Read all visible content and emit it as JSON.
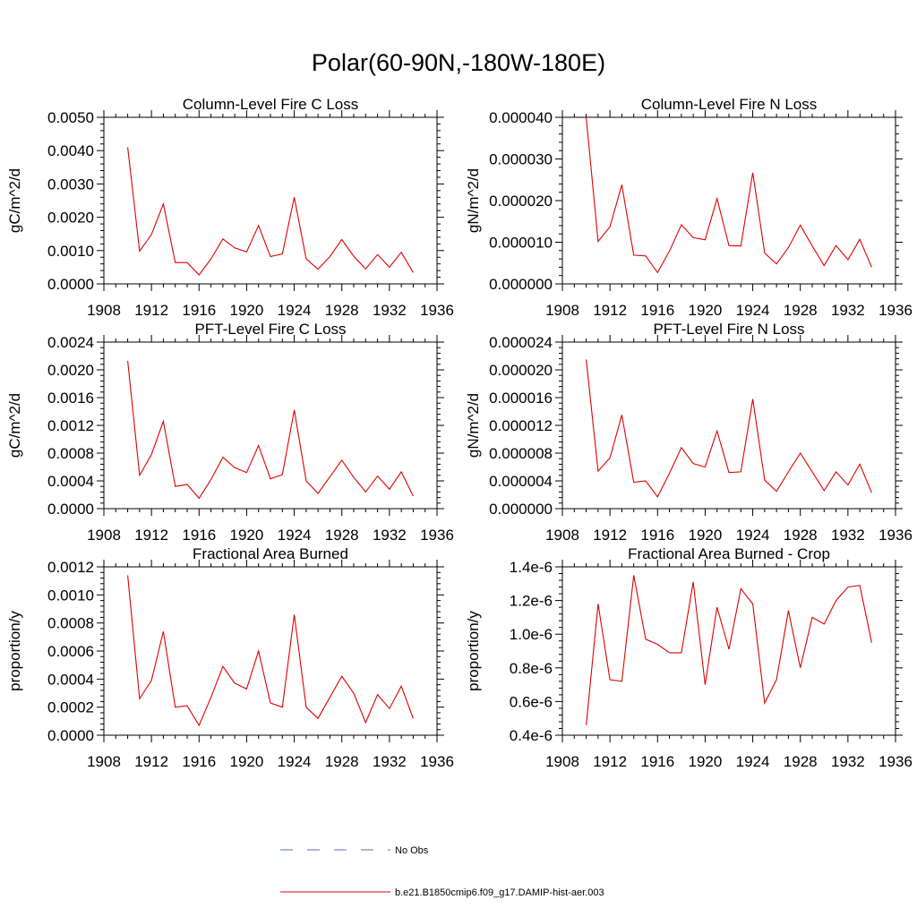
{
  "figure_title": "Polar(60-90N,-180W-180E)",
  "legend": {
    "entries": [
      {
        "label": "No Obs",
        "style": "dashed",
        "color": "#5a6ec8"
      },
      {
        "label": "b.e21.B1850cmip6.f09_g17.DAMIP-hist-aer.003",
        "style": "solid",
        "color": "#e00000"
      }
    ]
  },
  "chart_data": [
    {
      "type": "line",
      "title": "Column-Level Fire C Loss",
      "ylabel": "gC/m^2/d",
      "xlim": [
        1908,
        1936
      ],
      "xticks": [
        "1908",
        "1912",
        "1916",
        "1920",
        "1924",
        "1928",
        "1932",
        "1936"
      ],
      "ylim": [
        0,
        0.005
      ],
      "yticks": [
        "0.0000",
        "0.0010",
        "0.0020",
        "0.0030",
        "0.0040",
        "0.0050"
      ],
      "color": "#e00000",
      "x": [
        1910,
        1911,
        1912,
        1913,
        1914,
        1915,
        1916,
        1917,
        1918,
        1919,
        1920,
        1921,
        1922,
        1923,
        1924,
        1925,
        1926,
        1927,
        1928,
        1929,
        1930,
        1931,
        1932,
        1933,
        1934
      ],
      "values": [
        0.0041,
        0.00098,
        0.00148,
        0.0024,
        0.00064,
        0.00064,
        0.00027,
        0.00075,
        0.00135,
        0.00108,
        0.00096,
        0.00175,
        0.00082,
        0.0009,
        0.0026,
        0.00075,
        0.00044,
        0.00082,
        0.00133,
        0.00083,
        0.00045,
        0.00088,
        0.0005,
        0.00095,
        0.00034
      ]
    },
    {
      "type": "line",
      "title": "Column-Level Fire N Loss",
      "ylabel": "gN/m^2/d",
      "xlim": [
        1908,
        1936
      ],
      "xticks": [
        "1908",
        "1912",
        "1916",
        "1920",
        "1924",
        "1928",
        "1932",
        "1936"
      ],
      "ylim": [
        0,
        4e-05
      ],
      "yticks": [
        "0.000000",
        "0.000010",
        "0.000020",
        "0.000030",
        "0.000040"
      ],
      "color": "#e00000",
      "x": [
        1910,
        1911,
        1912,
        1913,
        1914,
        1915,
        1916,
        1917,
        1918,
        1919,
        1920,
        1921,
        1922,
        1923,
        1924,
        1925,
        1926,
        1927,
        1928,
        1929,
        1930,
        1931,
        1932,
        1933,
        1934
      ],
      "values": [
        4e-05,
        1.02e-05,
        1.37e-05,
        2.38e-05,
        6.9e-06,
        6.7e-06,
        2.7e-06,
        7.9e-06,
        1.42e-05,
        1.11e-05,
        1.06e-05,
        2.05e-05,
        9.2e-06,
        9.1e-06,
        2.67e-05,
        7.4e-06,
        4.8e-06,
        8.7e-06,
        1.41e-05,
        9.1e-06,
        4.4e-06,
        9.2e-06,
        5.8e-06,
        1.07e-05,
        4e-06
      ]
    },
    {
      "type": "line",
      "title": "PFT-Level Fire C Loss",
      "ylabel": "gC/m^2/d",
      "xlim": [
        1908,
        1936
      ],
      "xticks": [
        "1908",
        "1912",
        "1916",
        "1920",
        "1924",
        "1928",
        "1932",
        "1936"
      ],
      "ylim": [
        0,
        0.0024
      ],
      "yticks": [
        "0.0000",
        "0.0004",
        "0.0008",
        "0.0012",
        "0.0016",
        "0.0020",
        "0.0024"
      ],
      "color": "#e00000",
      "x": [
        1910,
        1911,
        1912,
        1913,
        1914,
        1915,
        1916,
        1917,
        1918,
        1919,
        1920,
        1921,
        1922,
        1923,
        1924,
        1925,
        1926,
        1927,
        1928,
        1929,
        1930,
        1931,
        1932,
        1933,
        1934
      ],
      "values": [
        0.00213,
        0.00048,
        0.00078,
        0.00126,
        0.00032,
        0.00035,
        0.00015,
        0.00042,
        0.00074,
        0.00059,
        0.00052,
        0.00091,
        0.00043,
        0.00049,
        0.00142,
        0.0004,
        0.00022,
        0.00046,
        0.0007,
        0.00045,
        0.00024,
        0.00047,
        0.00028,
        0.00053,
        0.00018
      ]
    },
    {
      "type": "line",
      "title": "PFT-Level Fire N Loss",
      "ylabel": "gN/m^2/d",
      "xlim": [
        1908,
        1936
      ],
      "xticks": [
        "1908",
        "1912",
        "1916",
        "1920",
        "1924",
        "1928",
        "1932",
        "1936"
      ],
      "ylim": [
        0,
        2.4e-05
      ],
      "yticks": [
        "0.000000",
        "0.000004",
        "0.000008",
        "0.000012",
        "0.000016",
        "0.000020",
        "0.000024"
      ],
      "color": "#e00000",
      "x": [
        1910,
        1911,
        1912,
        1913,
        1914,
        1915,
        1916,
        1917,
        1918,
        1919,
        1920,
        1921,
        1922,
        1923,
        1924,
        1925,
        1926,
        1927,
        1928,
        1929,
        1930,
        1931,
        1932,
        1933,
        1934
      ],
      "values": [
        2.15e-05,
        5.4e-06,
        7.3e-06,
        1.35e-05,
        3.8e-06,
        4e-06,
        1.7e-06,
        5.1e-06,
        8.8e-06,
        6.5e-06,
        6e-06,
        1.12e-05,
        5.2e-06,
        5.3e-06,
        1.58e-05,
        4.1e-06,
        2.5e-06,
        5.3e-06,
        8e-06,
        5.3e-06,
        2.6e-06,
        5.3e-06,
        3.4e-06,
        6.4e-06,
        2.3e-06
      ]
    },
    {
      "type": "line",
      "title": "Fractional Area Burned",
      "ylabel": "proportion/y",
      "xlim": [
        1908,
        1936
      ],
      "xticks": [
        "1908",
        "1912",
        "1916",
        "1920",
        "1924",
        "1928",
        "1932",
        "1936"
      ],
      "ylim": [
        0,
        0.0012
      ],
      "yticks": [
        "0.0000",
        "0.0002",
        "0.0004",
        "0.0006",
        "0.0008",
        "0.0010",
        "0.0012"
      ],
      "color": "#e00000",
      "x": [
        1910,
        1911,
        1912,
        1913,
        1914,
        1915,
        1916,
        1917,
        1918,
        1919,
        1920,
        1921,
        1922,
        1923,
        1924,
        1925,
        1926,
        1927,
        1928,
        1929,
        1930,
        1931,
        1932,
        1933,
        1934
      ],
      "values": [
        0.00114,
        0.00026,
        0.00039,
        0.00074,
        0.0002,
        0.00021,
        7e-05,
        0.00027,
        0.00049,
        0.00037,
        0.00033,
        0.0006,
        0.00023,
        0.0002,
        0.00086,
        0.0002,
        0.00012,
        0.00027,
        0.00042,
        0.0003,
        9e-05,
        0.00029,
        0.00019,
        0.00035,
        0.00012
      ]
    },
    {
      "type": "line",
      "title": "Fractional Area Burned - Crop",
      "ylabel": "proportion/y",
      "xlim": [
        1908,
        1936
      ],
      "xticks": [
        "1908",
        "1912",
        "1916",
        "1920",
        "1924",
        "1928",
        "1932",
        "1936"
      ],
      "ylim": [
        4e-07,
        1.4e-06
      ],
      "yticks": [
        "0.4e-6",
        "0.6e-6",
        "0.8e-6",
        "1.0e-6",
        "1.2e-6",
        "1.4e-6"
      ],
      "color": "#e00000",
      "x": [
        1910,
        1911,
        1912,
        1913,
        1914,
        1915,
        1916,
        1917,
        1918,
        1919,
        1920,
        1921,
        1922,
        1923,
        1924,
        1925,
        1926,
        1927,
        1928,
        1929,
        1930,
        1931,
        1932,
        1933,
        1934
      ],
      "values": [
        4.6e-07,
        1.18e-06,
        7.3e-07,
        7.2e-07,
        1.35e-06,
        9.7e-07,
        9.4e-07,
        8.9e-07,
        8.9e-07,
        1.31e-06,
        7e-07,
        1.16e-06,
        9.1e-07,
        1.27e-06,
        1.18e-06,
        5.9e-07,
        7.3e-07,
        1.14e-06,
        8e-07,
        1.1e-06,
        1.06e-06,
        1.2e-06,
        1.28e-06,
        1.29e-06,
        9.5e-07
      ]
    }
  ]
}
